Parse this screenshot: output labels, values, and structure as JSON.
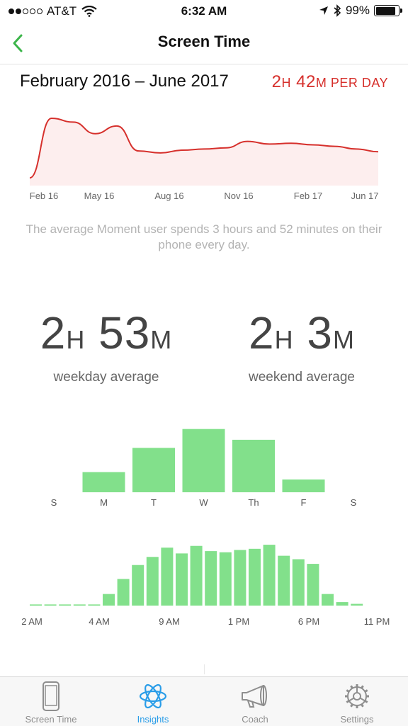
{
  "status": {
    "carrier": "AT&T",
    "time": "6:32 AM",
    "battery": "99%",
    "battery_level": 0.99,
    "signal_bars": 2
  },
  "nav": {
    "title": "Screen Time"
  },
  "summary": {
    "range": "February 2016 – June 2017",
    "per_day_h": "2",
    "per_day_h_unit": "H",
    "per_day_m": " 42",
    "per_day_m_unit": "M",
    "per_day_suffix": " PER DAY"
  },
  "avg_note": "The average Moment user spends 3 hours and 52 minutes on their phone every day.",
  "stats": {
    "weekday": {
      "hours": "2",
      "h_unit": "H",
      "minutes": " 53",
      "m_unit": "M",
      "label": "weekday average"
    },
    "weekend": {
      "hours": "2",
      "h_unit": "H",
      "minutes": " 3",
      "m_unit": "M",
      "label": "weekend average"
    }
  },
  "colors": {
    "accent_red": "#d6302c",
    "area_fill": "#fdeeee",
    "bar_green": "#82e08b",
    "tab_active": "#2a9de8",
    "tab_inactive": "#8e8e8e"
  },
  "chart_data": [
    {
      "type": "area",
      "title": "",
      "x_ticks": [
        "Feb 16",
        "May 16",
        "Aug 16",
        "Nov 16",
        "Feb 17",
        "Jun 17"
      ],
      "x": [
        "Feb 16",
        "Mar 16",
        "Apr 16",
        "May 16",
        "Jun 16",
        "Jul 16",
        "Aug 16",
        "Sep 16",
        "Oct 16",
        "Nov 16",
        "Dec 16",
        "Jan 17",
        "Feb 17",
        "Mar 17",
        "Apr 17",
        "May 17",
        "Jun 17"
      ],
      "series": [
        {
          "values": [
            2.0,
            3.55,
            3.45,
            3.15,
            3.35,
            2.7,
            2.65,
            2.72,
            2.75,
            2.78,
            2.95,
            2.88,
            2.9,
            2.86,
            2.82,
            2.75,
            2.68
          ]
        }
      ],
      "ylim": [
        1.8,
        3.9
      ],
      "grid": false
    },
    {
      "type": "bar",
      "categories": [
        "S",
        "M",
        "T",
        "W",
        "Th",
        "F",
        "S"
      ],
      "values": [
        0,
        1.5,
        3.3,
        4.7,
        3.9,
        0.95,
        0
      ],
      "ylim": [
        0,
        5
      ]
    },
    {
      "type": "bar",
      "x_ticks": [
        "2 AM",
        "4 AM",
        "9 AM",
        "1 PM",
        "6 PM",
        "11 PM"
      ],
      "values": [
        0.02,
        0.02,
        0.02,
        0.02,
        0.02,
        0.2,
        0.46,
        0.7,
        0.84,
        1.0,
        0.9,
        1.03,
        0.94,
        0.92,
        0.96,
        0.98,
        1.05,
        0.86,
        0.8,
        0.72,
        0.2,
        0.06,
        0.03
      ],
      "ylim": [
        0,
        1.1
      ]
    }
  ],
  "tabs": [
    {
      "label": "Screen Time",
      "icon": "phone-icon"
    },
    {
      "label": "Insights",
      "icon": "atom-icon"
    },
    {
      "label": "Coach",
      "icon": "megaphone-icon"
    },
    {
      "label": "Settings",
      "icon": "gear-icon"
    }
  ]
}
